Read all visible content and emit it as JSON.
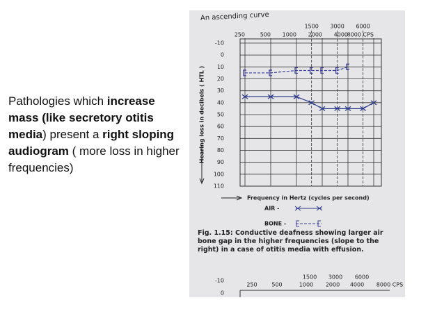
{
  "slide": {
    "body": [
      {
        "text": "Pathologies which ",
        "bold": false
      },
      {
        "text": "increase mass (like secretory otitis media",
        "bold": true
      },
      {
        "text": ") present a ",
        "bold": false
      },
      {
        "text": "right sloping audiogram",
        "bold": true
      },
      {
        "text": " ( more loss in higher frequencies)",
        "bold": false
      }
    ]
  },
  "figure": {
    "header": "An ascending curve",
    "chart": {
      "type": "line",
      "y_label": "Hearing loss in decibels ( HTL )",
      "x_label": "Frequency in Hertz  (cycles per second)",
      "xscale": "log",
      "xlim": [
        250,
        8000
      ],
      "xticks": [
        250,
        500,
        1000,
        1500,
        2000,
        3000,
        4000,
        6000,
        {
          "value": 8000,
          "label": "8000 CPS"
        }
      ],
      "ylim": [
        -10,
        110
      ],
      "yticks": [
        -10,
        0,
        10,
        20,
        30,
        40,
        50,
        60,
        70,
        80,
        90,
        100,
        110
      ],
      "grid": true,
      "x": [
        250,
        500,
        1000,
        1500,
        2000,
        3000,
        4000,
        6000,
        8000
      ],
      "series": [
        {
          "name": "AIR -",
          "color": "#2b3a8c",
          "marker": "x",
          "values": [
            35,
            35,
            35,
            40,
            45,
            45,
            45,
            45,
            40
          ]
        },
        {
          "name": "BONE -",
          "color": "#3a3f9a",
          "marker": "bracket",
          "values": [
            15,
            15,
            13,
            13,
            13,
            13,
            10,
            null,
            null
          ]
        }
      ]
    },
    "caption": "Fig. 1.15: Conductive deafness showing larger air bone gap in the higher frequencies (slope to the right) in a case of otitis media with effusion.",
    "next_chart": {
      "upper_ticks": [
        "1500",
        "3000",
        "6000"
      ],
      "lower_ticks": [
        "250",
        "500",
        "1000",
        "2000",
        "4000",
        "8000 CPS"
      ],
      "yticks": [
        "-10",
        "0"
      ]
    }
  }
}
